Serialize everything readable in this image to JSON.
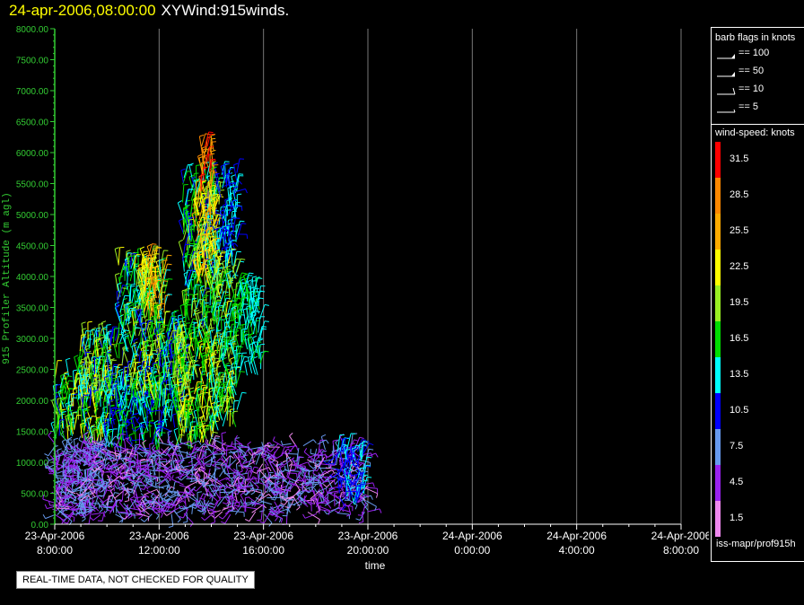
{
  "header": {
    "date_label": "24-apr-2006,08:00:00",
    "plot_name": "XYWind:915winds."
  },
  "chart_data": {
    "type": "scatter",
    "ylabel": "915 Profiler Altitude (m agl)",
    "xlabel": "time",
    "ylim": [
      0,
      8000
    ],
    "xlim_hours": [
      0,
      24
    ],
    "y_ticks": [
      "0.00",
      "500.00",
      "1000.00",
      "1500.00",
      "2000.00",
      "2500.00",
      "3000.00",
      "3500.00",
      "4000.00",
      "4500.00",
      "5000.00",
      "5500.00",
      "6000.00",
      "6500.00",
      "7000.00",
      "7500.00",
      "8000.00"
    ],
    "x_ticks": [
      {
        "date": "23-Apr-2006",
        "time": "8:00:00",
        "hour": 0
      },
      {
        "date": "23-Apr-2006",
        "time": "12:00:00",
        "hour": 4
      },
      {
        "date": "23-Apr-2006",
        "time": "16:00:00",
        "hour": 8
      },
      {
        "date": "23-Apr-2006",
        "time": "20:00:00",
        "hour": 12
      },
      {
        "date": "24-Apr-2006",
        "time": "0:00:00",
        "hour": 16
      },
      {
        "date": "24-Apr-2006",
        "time": "4:00:00",
        "hour": 20
      },
      {
        "date": "24-Apr-2006",
        "time": "8:00:00",
        "hour": 24
      }
    ],
    "grid": "vertical",
    "axis_color": "#33cc33",
    "wind_regions": [
      {
        "t0": 0.0,
        "t1": 1.9,
        "z0": 150,
        "z1": 1300,
        "sp": [
          3,
          9
        ]
      },
      {
        "t0": 0.0,
        "t1": 1.9,
        "z0": 1300,
        "z1": 2400,
        "sp": [
          11,
          24
        ]
      },
      {
        "t0": 0.9,
        "t1": 2.4,
        "z0": 1800,
        "z1": 3000,
        "sp": [
          10,
          22
        ]
      },
      {
        "t0": 1.9,
        "t1": 4.1,
        "z0": 1200,
        "z1": 2200,
        "sp": [
          9,
          18
        ]
      },
      {
        "t0": 2.4,
        "t1": 4.2,
        "z0": 2000,
        "z1": 4200,
        "sp": [
          11,
          22
        ]
      },
      {
        "t0": 3.3,
        "t1": 4.2,
        "z0": 3300,
        "z1": 4250,
        "sp": [
          18,
          28
        ]
      },
      {
        "t0": 4.1,
        "t1": 5.1,
        "z0": 1500,
        "z1": 3200,
        "sp": [
          10,
          19
        ]
      },
      {
        "t0": 4.6,
        "t1": 6.1,
        "z0": 1200,
        "z1": 3000,
        "sp": [
          14,
          24
        ]
      },
      {
        "t0": 4.9,
        "t1": 6.3,
        "z0": 3000,
        "z1": 5600,
        "sp": [
          11,
          21
        ]
      },
      {
        "t0": 5.4,
        "t1": 6.2,
        "z0": 3800,
        "z1": 5300,
        "sp": [
          20,
          27
        ]
      },
      {
        "t0": 5.6,
        "t1": 6.1,
        "z0": 5300,
        "z1": 6150,
        "sp": [
          25,
          33
        ]
      },
      {
        "t0": 6.3,
        "t1": 7.0,
        "z0": 4200,
        "z1": 5700,
        "sp": [
          9,
          15
        ]
      },
      {
        "t0": 6.0,
        "t1": 7.0,
        "z0": 1500,
        "z1": 4200,
        "sp": [
          12,
          22
        ]
      },
      {
        "t0": 6.9,
        "t1": 7.9,
        "z0": 2400,
        "z1": 3800,
        "sp": [
          12,
          17
        ]
      },
      {
        "t0": 0.0,
        "t1": 12.0,
        "z0": 150,
        "z1": 1300,
        "sp": [
          2,
          9
        ]
      },
      {
        "t0": 10.8,
        "t1": 11.9,
        "z0": 300,
        "z1": 1200,
        "sp": [
          9,
          14
        ]
      }
    ]
  },
  "legend": {
    "barb_title": "barb flags in knots",
    "barbs": [
      {
        "label": "== 100",
        "kind": "pennant"
      },
      {
        "label": "== 50",
        "kind": "pennant"
      },
      {
        "label": "== 10",
        "kind": "full"
      },
      {
        "label": "== 5",
        "kind": "half"
      }
    ],
    "speed_title": "wind-speed: knots",
    "scale": [
      {
        "value": "31.5",
        "color": "#ff0000"
      },
      {
        "value": "28.5",
        "color": "#ff8800"
      },
      {
        "value": "25.5",
        "color": "#ffaa00"
      },
      {
        "value": "22.5",
        "color": "#ffff00"
      },
      {
        "value": "19.5",
        "color": "#99ee22"
      },
      {
        "value": "16.5",
        "color": "#00dd00"
      },
      {
        "value": "13.5",
        "color": "#00ffff"
      },
      {
        "value": "10.5",
        "color": "#0000ff"
      },
      {
        "value": "7.5",
        "color": "#6699ee"
      },
      {
        "value": "4.5",
        "color": "#9922ee"
      },
      {
        "value": "1.5",
        "color": "#ee88ee"
      }
    ]
  },
  "footer": {
    "source": "iss-mapr/prof915h",
    "notice": "REAL-TIME DATA, NOT CHECKED FOR QUALITY"
  }
}
